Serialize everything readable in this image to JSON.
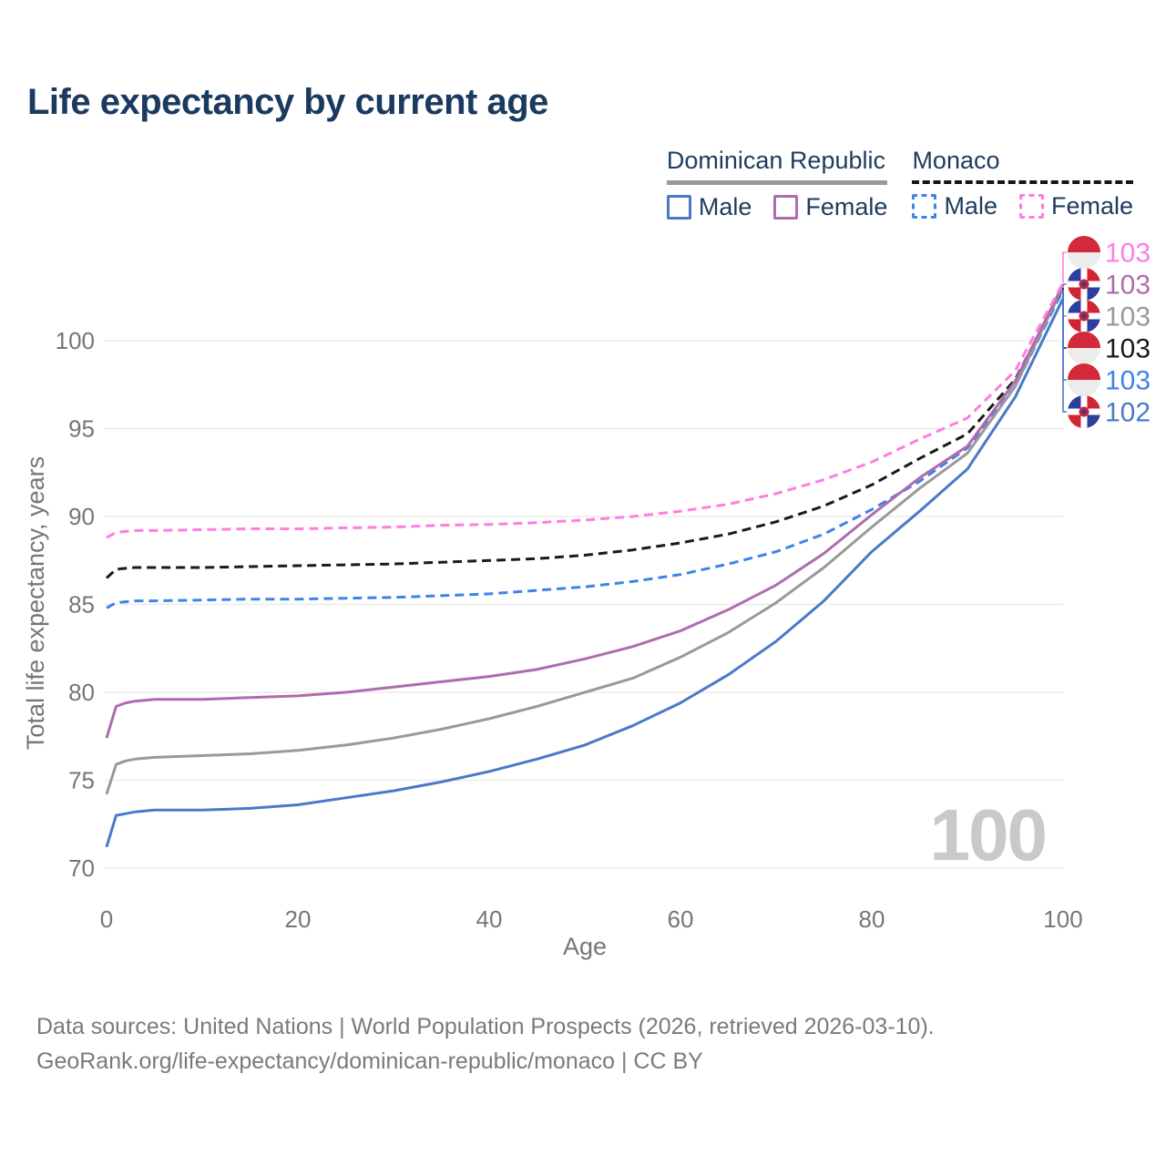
{
  "header": {
    "title": "Life expectancy by current age"
  },
  "legend": {
    "groups": [
      {
        "title": "Dominican Republic",
        "underline_color": "#999999",
        "underline_dash": false,
        "items": [
          {
            "label": "Male",
            "color": "#4a79ca",
            "dash": false
          },
          {
            "label": "Female",
            "color": "#ae6cae",
            "dash": false
          }
        ]
      },
      {
        "title": "Monaco",
        "underline_color": "#151515",
        "underline_dash": true,
        "items": [
          {
            "label": "Male",
            "color": "#3f83ea",
            "dash": true
          },
          {
            "label": "Female",
            "color": "#ff7de2",
            "dash": true
          }
        ]
      }
    ]
  },
  "chart_data": {
    "type": "line",
    "title": "Life expectancy by current age",
    "xlabel": "Age",
    "ylabel": "Total life expectancy, years",
    "x_ticks": [
      0,
      20,
      40,
      60,
      80,
      100
    ],
    "y_ticks": [
      70,
      75,
      80,
      85,
      90,
      95,
      100
    ],
    "xlim": [
      0,
      100
    ],
    "ylim": [
      68.5,
      104.5
    ],
    "grid": true,
    "watermark": "100",
    "ages": [
      0,
      1,
      2,
      3,
      5,
      10,
      15,
      20,
      25,
      30,
      35,
      40,
      45,
      50,
      55,
      60,
      65,
      70,
      75,
      80,
      85,
      90,
      95,
      100
    ],
    "series": [
      {
        "id": "monaco-female",
        "country": "Monaco",
        "sex": "Female",
        "color": "#ff7de2",
        "dash": true,
        "flag": "mc",
        "end_label": "103",
        "values": [
          88.8,
          89.1,
          89.15,
          89.2,
          89.2,
          89.25,
          89.3,
          89.3,
          89.35,
          89.4,
          89.5,
          89.55,
          89.65,
          89.8,
          90.0,
          90.3,
          90.7,
          91.3,
          92.1,
          93.1,
          94.4,
          95.6,
          98.3,
          103.3
        ]
      },
      {
        "id": "dominican-republic-female",
        "country": "Dominican Republic",
        "sex": "Female",
        "color": "#ae6cae",
        "dash": false,
        "flag": "do",
        "end_label": "103",
        "values": [
          77.4,
          79.2,
          79.4,
          79.5,
          79.6,
          79.6,
          79.7,
          79.8,
          80.0,
          80.3,
          80.6,
          80.9,
          81.3,
          81.9,
          82.6,
          83.5,
          84.7,
          86.1,
          87.9,
          90.1,
          92.2,
          94.0,
          97.7,
          103.2
        ]
      },
      {
        "id": "dominican-republic-both",
        "country": "Dominican Republic",
        "sex": "Both sexes",
        "color": "#999999",
        "dash": false,
        "flag": "do",
        "end_label": "103",
        "values": [
          74.2,
          75.9,
          76.1,
          76.2,
          76.3,
          76.4,
          76.5,
          76.7,
          77.0,
          77.4,
          77.9,
          78.5,
          79.2,
          80.0,
          80.8,
          82.0,
          83.4,
          85.1,
          87.1,
          89.4,
          91.6,
          93.6,
          97.4,
          103.1
        ]
      },
      {
        "id": "monaco-both",
        "country": "Monaco",
        "sex": "Both sexes",
        "color": "#1a1a1a",
        "dash": true,
        "flag": "mc",
        "end_label": "103",
        "values": [
          86.5,
          87.0,
          87.05,
          87.1,
          87.1,
          87.1,
          87.15,
          87.2,
          87.25,
          87.3,
          87.4,
          87.5,
          87.6,
          87.8,
          88.1,
          88.5,
          89.0,
          89.7,
          90.6,
          91.8,
          93.3,
          94.7,
          97.8,
          103.0
        ]
      },
      {
        "id": "monaco-male",
        "country": "Monaco",
        "sex": "Male",
        "color": "#3f83ea",
        "dash": true,
        "flag": "mc",
        "end_label": "103",
        "values": [
          84.8,
          85.1,
          85.15,
          85.2,
          85.2,
          85.25,
          85.3,
          85.3,
          85.35,
          85.4,
          85.5,
          85.6,
          85.8,
          86.0,
          86.3,
          86.7,
          87.3,
          88.0,
          89.0,
          90.4,
          92.0,
          93.9,
          97.4,
          102.9
        ]
      },
      {
        "id": "dominican-republic-male",
        "country": "Dominican Republic",
        "sex": "Male",
        "color": "#4a79ca",
        "dash": false,
        "flag": "do",
        "end_label": "102",
        "values": [
          71.2,
          73.0,
          73.1,
          73.2,
          73.3,
          73.3,
          73.4,
          73.6,
          74.0,
          74.4,
          74.9,
          75.5,
          76.2,
          77.0,
          78.1,
          79.4,
          81.0,
          82.9,
          85.2,
          88.0,
          90.3,
          92.7,
          96.8,
          102.4
        ]
      }
    ],
    "flag_colors": {
      "monaco_red": "#d2293b",
      "monaco_white": "#ececec",
      "dr_blue": "#2c3e9e",
      "dr_red": "#cf2535",
      "dr_cross": "#ffffff"
    }
  },
  "footer": {
    "line1": "Data sources: United Nations | World Population Prospects (2026, retrieved 2026-03-10).",
    "line2": "GeoRank.org/life-expectancy/dominican-republic/monaco | CC BY"
  }
}
